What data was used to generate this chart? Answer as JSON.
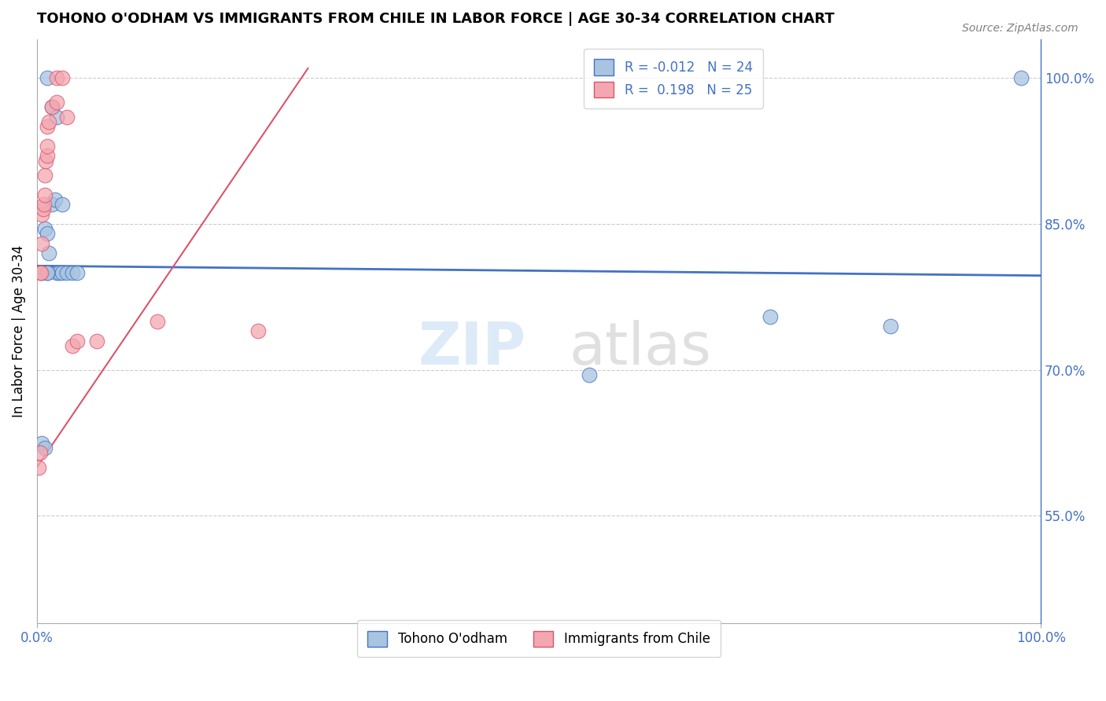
{
  "title": "TOHONO O'ODHAM VS IMMIGRANTS FROM CHILE IN LABOR FORCE | AGE 30-34 CORRELATION CHART",
  "source": "Source: ZipAtlas.com",
  "ylabel": "In Labor Force | Age 30-34",
  "ytick_labels": [
    "100.0%",
    "85.0%",
    "70.0%",
    "55.0%"
  ],
  "ytick_values": [
    1.0,
    0.85,
    0.7,
    0.55
  ],
  "xlim": [
    0.0,
    1.0
  ],
  "ylim": [
    0.44,
    1.04
  ],
  "blue_color": "#a8c4e0",
  "pink_color": "#f4a7b0",
  "blue_line_color": "#4472c4",
  "pink_line_color": "#d9546a",
  "legend_R_blue": "-0.012",
  "legend_N_blue": "24",
  "legend_R_pink": "0.198",
  "legend_N_pink": "25",
  "legend_label_blue": "Tohono O'odham",
  "legend_label_pink": "Immigrants from Chile",
  "blue_scatter_x": [
    0.005,
    0.008,
    0.01,
    0.012,
    0.015,
    0.018,
    0.02,
    0.022,
    0.025,
    0.03,
    0.035,
    0.04,
    0.01,
    0.015,
    0.02,
    0.025,
    0.005,
    0.008,
    0.01,
    0.01,
    0.55,
    0.73,
    0.85,
    0.98
  ],
  "blue_scatter_y": [
    0.8,
    0.845,
    0.84,
    0.82,
    0.87,
    0.875,
    0.8,
    0.8,
    0.8,
    0.8,
    0.8,
    0.8,
    1.0,
    0.97,
    0.96,
    0.87,
    0.625,
    0.62,
    0.8,
    0.8,
    0.695,
    0.755,
    0.745,
    1.0
  ],
  "pink_scatter_x": [
    0.002,
    0.003,
    0.003,
    0.004,
    0.005,
    0.005,
    0.006,
    0.007,
    0.008,
    0.008,
    0.009,
    0.01,
    0.01,
    0.01,
    0.012,
    0.015,
    0.02,
    0.02,
    0.025,
    0.03,
    0.035,
    0.04,
    0.06,
    0.12,
    0.22
  ],
  "pink_scatter_y": [
    0.6,
    0.615,
    0.8,
    0.8,
    0.83,
    0.86,
    0.865,
    0.87,
    0.88,
    0.9,
    0.915,
    0.92,
    0.93,
    0.95,
    0.955,
    0.97,
    0.975,
    1.0,
    1.0,
    0.96,
    0.725,
    0.73,
    0.73,
    0.75,
    0.74
  ],
  "blue_line_x": [
    0.0,
    1.0
  ],
  "blue_line_y": [
    0.807,
    0.797
  ],
  "pink_line_x": [
    0.0,
    0.27
  ],
  "pink_line_y": [
    0.6,
    1.01
  ]
}
